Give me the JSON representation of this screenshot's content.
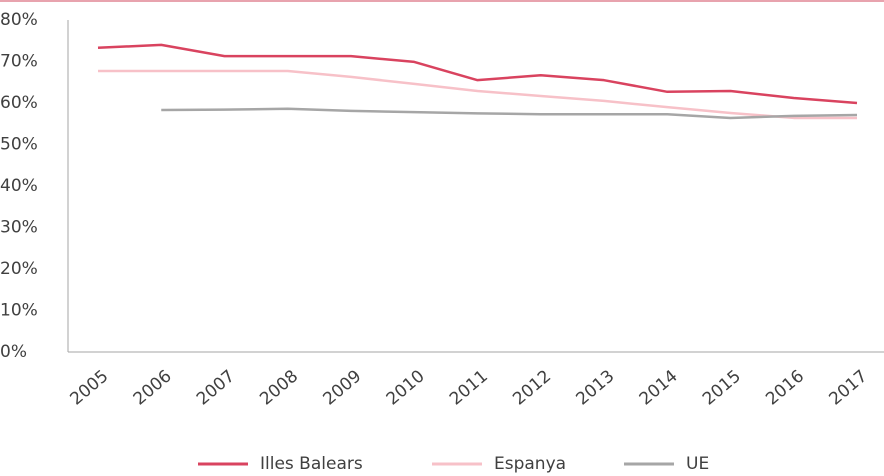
{
  "chart_data": {
    "type": "line",
    "categories": [
      "2005",
      "2006",
      "2007",
      "2008",
      "2009",
      "2010",
      "2011",
      "2012",
      "2013",
      "2014",
      "2015",
      "2016",
      "2017"
    ],
    "series": [
      {
        "name": "Illes Balears",
        "color": "#d9435f",
        "values": [
          73.3,
          74,
          71.3,
          71.3,
          71.3,
          69.9,
          65.5,
          66.7,
          65.5,
          62.7,
          62.9,
          61.2,
          60
        ]
      },
      {
        "name": "Espanya",
        "color": "#f7c1c8",
        "values": [
          67.7,
          67.7,
          67.7,
          67.7,
          66.3,
          64.6,
          62.9,
          61.7,
          60.5,
          59,
          57.6,
          56.4,
          56.4
        ]
      },
      {
        "name": "UE",
        "color": "#a6a6a6",
        "values": [
          null,
          58.3,
          58.4,
          58.6,
          58.1,
          57.8,
          57.5,
          57.3,
          57.3,
          57.3,
          56.4,
          56.9,
          57.1
        ]
      }
    ],
    "ylim": [
      0,
      80
    ],
    "yticks": [
      {
        "value": 0,
        "label": "0%"
      },
      {
        "value": 10,
        "label": "10%"
      },
      {
        "value": 20,
        "label": "20%"
      },
      {
        "value": 30,
        "label": "30%"
      },
      {
        "value": 40,
        "label": "40%"
      },
      {
        "value": 50,
        "label": "50%"
      },
      {
        "value": 60,
        "label": "60%"
      },
      {
        "value": 70,
        "label": "70%"
      },
      {
        "value": 80,
        "label": "80%"
      }
    ],
    "grid": false,
    "legend": "bottom"
  }
}
